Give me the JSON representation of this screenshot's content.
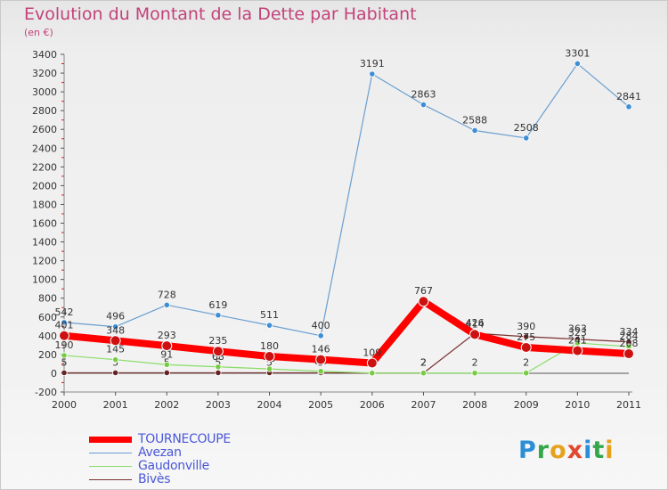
{
  "title": "Evolution du Montant de la Dette par Habitant",
  "subtitle": "(en €)",
  "logo": {
    "text": "Proxiti",
    "letters": [
      {
        "ch": "P",
        "color": "#2a8fd6"
      },
      {
        "ch": "r",
        "color": "#35a74a"
      },
      {
        "ch": "o",
        "color": "#e5a21c"
      },
      {
        "ch": "x",
        "color": "#e0482f"
      },
      {
        "ch": "i",
        "color": "#2a8fd6"
      },
      {
        "ch": "t",
        "color": "#35a74a"
      },
      {
        "ch": "i",
        "color": "#e5a21c"
      }
    ]
  },
  "chart_data": {
    "type": "line",
    "title": "Evolution du Montant de la Dette par Habitant",
    "ylabel": "(en €)",
    "xlabel": "",
    "categories": [
      "2000",
      "2001",
      "2002",
      "2003",
      "2004",
      "2005",
      "2006",
      "2007",
      "2008",
      "2009",
      "2010",
      "2011"
    ],
    "ylim": [
      -200,
      3400
    ],
    "yticks": [
      -200,
      0,
      200,
      400,
      600,
      800,
      1000,
      1200,
      1400,
      1600,
      1800,
      2000,
      2200,
      2400,
      2600,
      2800,
      3000,
      3200,
      3400
    ],
    "grid": false,
    "legend_position": "bottom-left",
    "series": [
      {
        "name": "TOURNECOUPE",
        "color": "#ff0000",
        "values": [
          401,
          348,
          293,
          235,
          180,
          146,
          109,
          767,
          414,
          275,
          241,
          208
        ]
      },
      {
        "name": "Avezan",
        "color": "#6a9fd0",
        "values": [
          542,
          496,
          728,
          619,
          511,
          400,
          3191,
          2863,
          2588,
          2508,
          3301,
          2841
        ]
      },
      {
        "name": "Gaudonville",
        "color": "#88dd66",
        "values": [
          190,
          145,
          91,
          68,
          46,
          21,
          2,
          2,
          2,
          2,
          323,
          284
        ]
      },
      {
        "name": "Bivès",
        "color": "#7a3030",
        "values": [
          5,
          5,
          5,
          5,
          5,
          5,
          2,
          2,
          426,
          390,
          363,
          334
        ]
      }
    ]
  }
}
